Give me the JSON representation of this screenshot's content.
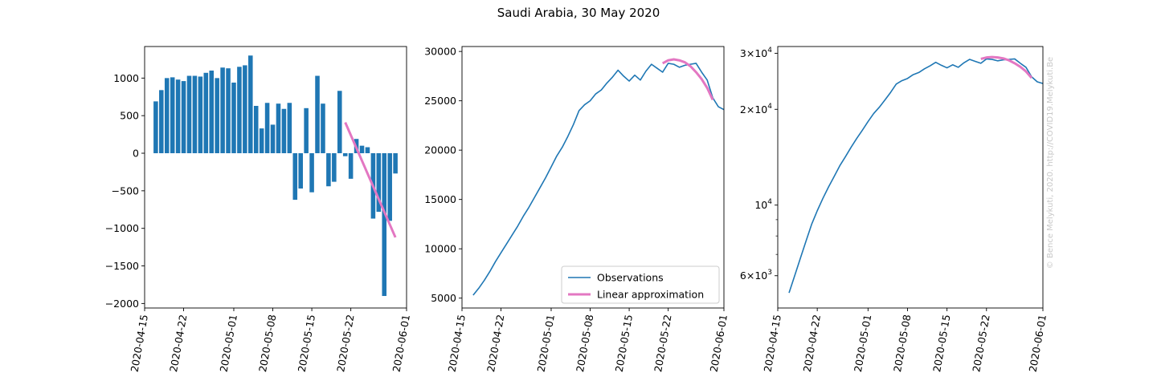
{
  "figure": {
    "title": "Saudi Arabia, 30 May 2020",
    "watermark": "© Bence Melykuti, 2020. http://COVID19.Melykuti.Be"
  },
  "colors": {
    "bars": "#1f77b4",
    "observations": "#1f77b4",
    "approximation": "#e377c2"
  },
  "chart_data": [
    {
      "type": "bar",
      "title": "",
      "xlabel": "",
      "ylabel": "",
      "x_start": "2020-04-17",
      "x_ticks": [
        "2020-04-15",
        "2020-04-22",
        "2020-05-01",
        "2020-05-08",
        "2020-05-15",
        "2020-05-22",
        "2020-06-01"
      ],
      "xlim": [
        "2020-04-15",
        "2020-06-01"
      ],
      "ylim": [
        -2060,
        1420
      ],
      "y_ticks": [
        -2000,
        -1500,
        -1000,
        -500,
        0,
        500,
        1000
      ],
      "y_tick_labels": [
        "−2000",
        "−1500",
        "−1000",
        "−500",
        "0",
        "500",
        "1000"
      ],
      "values": [
        690,
        840,
        1000,
        1010,
        980,
        960,
        1030,
        1030,
        1020,
        1070,
        1100,
        1000,
        1140,
        1130,
        940,
        1150,
        1170,
        1300,
        630,
        330,
        670,
        380,
        660,
        590,
        670,
        -620,
        -470,
        600,
        -520,
        1030,
        660,
        -440,
        -380,
        830,
        -40,
        -340,
        190,
        100,
        80,
        -870,
        -780,
        -1900,
        -900,
        -270
      ],
      "approximation": {
        "x": [
          "2020-05-21",
          "2020-05-30"
        ],
        "y": [
          410,
          -1120
        ]
      },
      "grid": false
    },
    {
      "type": "line",
      "title": "",
      "xlabel": "",
      "ylabel": "",
      "x_start": "2020-04-17",
      "x_ticks": [
        "2020-04-15",
        "2020-04-22",
        "2020-05-01",
        "2020-05-08",
        "2020-05-15",
        "2020-05-22",
        "2020-06-01"
      ],
      "xlim": [
        "2020-04-15",
        "2020-06-01"
      ],
      "ylim": [
        4000,
        30500
      ],
      "y_ticks": [
        5000,
        10000,
        15000,
        20000,
        25000,
        30000
      ],
      "y_tick_labels": [
        "5000",
        "10000",
        "15000",
        "20000",
        "25000",
        "30000"
      ],
      "series": [
        {
          "name": "Observations",
          "values": [
            5300,
            6000,
            6800,
            7700,
            8700,
            9600,
            10500,
            11400,
            12300,
            13300,
            14200,
            15200,
            16200,
            17200,
            18300,
            19400,
            20300,
            21400,
            22600,
            24000,
            24600,
            25000,
            25700,
            26100,
            26800,
            27400,
            28100,
            27500,
            27000,
            27600,
            27100,
            28000,
            28700,
            28300,
            27900,
            28800,
            28700,
            28400,
            28600,
            28700,
            28800,
            27900,
            27100,
            25300,
            24400,
            24100
          ]
        },
        {
          "name": "Linear approximation",
          "x": [
            "2020-05-21",
            "2020-05-22",
            "2020-05-23",
            "2020-05-24",
            "2020-05-25",
            "2020-05-26",
            "2020-05-27",
            "2020-05-28",
            "2020-05-29",
            "2020-05-30"
          ],
          "values": [
            28800,
            29100,
            29200,
            29100,
            28900,
            28500,
            27900,
            27200,
            26300,
            25100
          ]
        }
      ],
      "legend": "lower-right",
      "grid": false
    },
    {
      "type": "line",
      "title": "",
      "xlabel": "",
      "ylabel": "",
      "yscale": "log",
      "x_start": "2020-04-17",
      "x_ticks": [
        "2020-04-15",
        "2020-04-22",
        "2020-05-01",
        "2020-05-08",
        "2020-05-15",
        "2020-05-22",
        "2020-06-01"
      ],
      "xlim": [
        "2020-04-15",
        "2020-06-01"
      ],
      "ylim": [
        4750,
        31500
      ],
      "y_ticks": [
        6000,
        10000,
        20000,
        30000
      ],
      "y_tick_labels": [
        {
          "base": "6",
          "exp": "3"
        },
        {
          "base": "",
          "exp": "4"
        },
        {
          "base": "2",
          "exp": "4"
        },
        {
          "base": "3",
          "exp": "4"
        }
      ],
      "y_minor_ticks": [
        7000,
        8000,
        9000
      ],
      "series": [
        {
          "name": "Observations",
          "values": [
            5300,
            6000,
            6800,
            7700,
            8700,
            9600,
            10500,
            11400,
            12300,
            13300,
            14200,
            15200,
            16200,
            17200,
            18300,
            19400,
            20300,
            21400,
            22600,
            24000,
            24600,
            25000,
            25700,
            26100,
            26800,
            27400,
            28100,
            27500,
            27000,
            27600,
            27100,
            28000,
            28700,
            28300,
            27900,
            28800,
            28700,
            28400,
            28600,
            28700,
            28800,
            27900,
            27100,
            25300,
            24400,
            24100
          ]
        },
        {
          "name": "Linear approximation",
          "x": [
            "2020-05-21",
            "2020-05-22",
            "2020-05-23",
            "2020-05-24",
            "2020-05-25",
            "2020-05-26",
            "2020-05-27",
            "2020-05-28",
            "2020-05-29",
            "2020-05-30"
          ],
          "values": [
            28800,
            29100,
            29200,
            29100,
            28900,
            28500,
            27900,
            27200,
            26300,
            25100
          ]
        }
      ],
      "grid": false
    }
  ]
}
